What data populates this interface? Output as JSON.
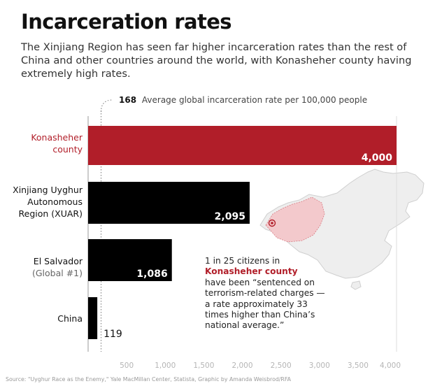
{
  "title": "Incarceration rates",
  "subtitle": "The Xinjiang Region has seen far higher incarceration rates than the rest of China and other countries around the world, with Konasheher county having extremely high rates.",
  "source": "Source: \"Uyghur Race as the Enemy,\" Yale MacMillan Center, Statista, Graphic by Amanda Weisbrod/RFA",
  "reference_line": {
    "value": 168,
    "value_label": "168",
    "text": "Average global incarceration rate per 100,000 people"
  },
  "map_note": {
    "before": "1 in 25 citizens in",
    "highlight": "Konasheher county",
    "after": "have been “sentenced on terrorism-related charges — a rate approximately 33 times higher than China’s national average.”"
  },
  "colors": {
    "highlight": "#b11e29",
    "bar": "#000000",
    "map_fill": "#eeeeee",
    "map_region": "#f3c9cc"
  },
  "chart_data": {
    "type": "bar",
    "orientation": "horizontal",
    "title": "Incarceration rates",
    "categories": [
      {
        "line1": "Konasheher",
        "line2": "county",
        "line3": ""
      },
      {
        "line1": "Xinjiang Uyghur",
        "line2": "Autonomous",
        "line3": "Region (XUAR)"
      },
      {
        "line1": "El Salvador",
        "line2": "(Global #1)",
        "line3": ""
      },
      {
        "line1": "China",
        "line2": "",
        "line3": ""
      }
    ],
    "values": [
      4000,
      2095,
      1086,
      119
    ],
    "value_labels": [
      "4,000",
      "2,095",
      "1,086",
      "119"
    ],
    "highlight_index": 0,
    "xlim": [
      0,
      4000
    ],
    "xticks": [
      500,
      1000,
      1500,
      2000,
      2500,
      3000,
      3500,
      4000
    ],
    "xtick_labels": [
      "500",
      "1,000",
      "1,500",
      "2,000",
      "2,500",
      "3,000",
      "3,500",
      "4,000"
    ],
    "grid": false,
    "legend": "none"
  }
}
